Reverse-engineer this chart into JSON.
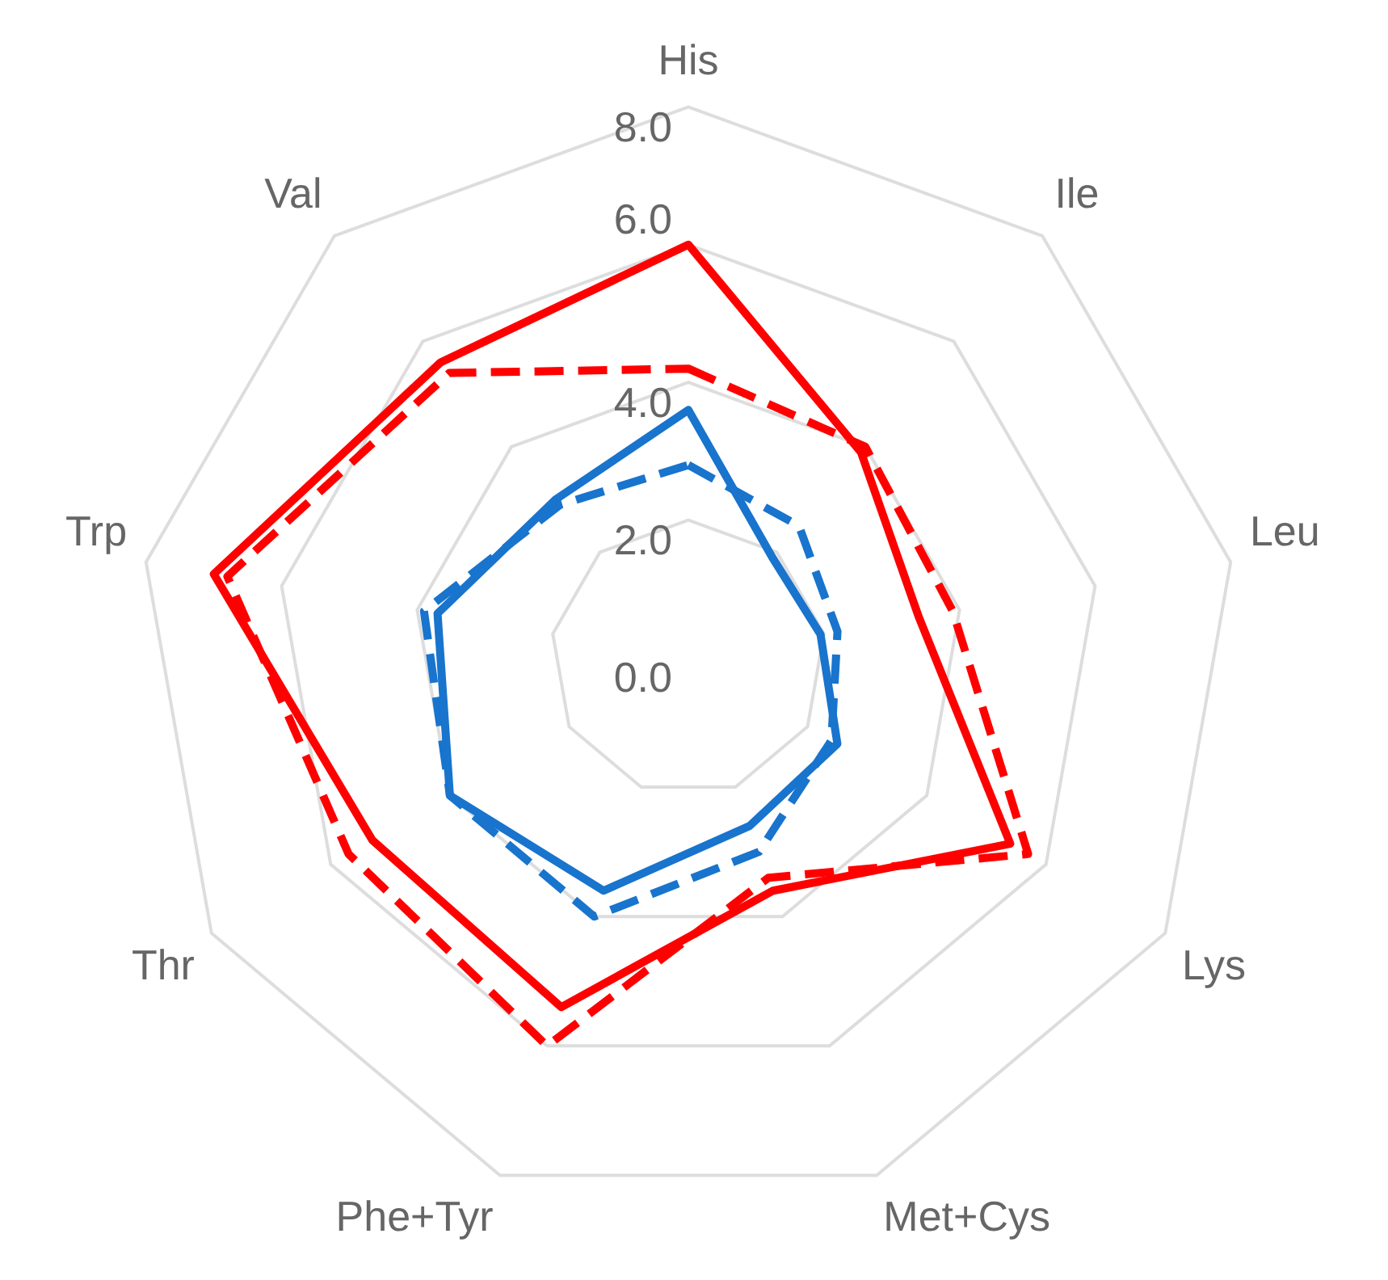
{
  "chart_data": {
    "type": "radar",
    "categories": [
      "His",
      "Ile",
      "Leu",
      "Lys",
      "Met+Cys",
      "Phe+Tyr",
      "Thr",
      "Trp",
      "Val"
    ],
    "ylim": [
      0,
      8
    ],
    "yticks": [
      {
        "value": 0,
        "label": "0.0"
      },
      {
        "value": 2,
        "label": "2.0"
      },
      {
        "value": 4,
        "label": "4.0"
      },
      {
        "value": 6,
        "label": "6.0"
      },
      {
        "value": 8,
        "label": "8.0"
      }
    ],
    "grid": true,
    "legend": false,
    "marker": "none",
    "series": [
      {
        "color": "#ff0000",
        "line_style": "solid",
        "values": [
          6.0,
          3.9,
          3.4,
          5.4,
          3.6,
          5.4,
          5.3,
          7.0,
          5.6
        ]
      },
      {
        "color": "#ff0000",
        "line_style": "dashed",
        "values": [
          4.2,
          4.0,
          3.9,
          5.7,
          3.4,
          6.0,
          5.7,
          6.8,
          5.4
        ]
      },
      {
        "color": "#1874cd",
        "line_style": "solid",
        "values": [
          3.6,
          1.9,
          1.95,
          2.5,
          2.6,
          3.6,
          4.0,
          3.7,
          3.0
        ]
      },
      {
        "color": "#1874cd",
        "line_style": "dashed",
        "values": [
          2.8,
          2.5,
          2.2,
          2.4,
          3.0,
          4.0,
          4.0,
          3.9,
          2.9
        ]
      }
    ]
  }
}
